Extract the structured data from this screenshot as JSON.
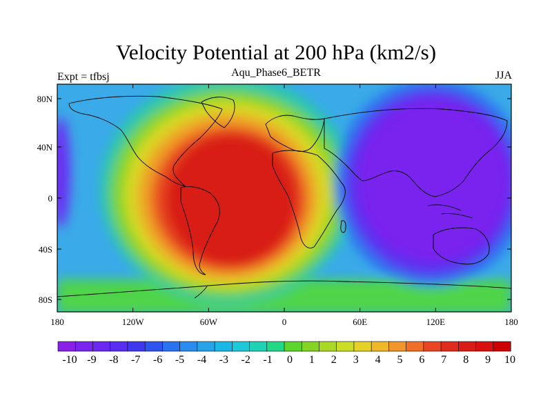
{
  "title": "Velocity Potential at 200 hPa (km2/s)",
  "left_label": "Expt = tfbsj",
  "center_label": "Aqu_Phase6_BETR",
  "right_label": "JJA",
  "x_ticks": [
    "180",
    "120W",
    "60W",
    "0",
    "60E",
    "120E",
    "180"
  ],
  "y_ticks": [
    "80N",
    "40N",
    "0",
    "40S",
    "80S"
  ],
  "colorbar_labels": [
    "-10",
    "-9",
    "-8",
    "-7",
    "-6",
    "-5",
    "-4",
    "-3",
    "-2",
    "-1",
    "0",
    "1",
    "2",
    "3",
    "4",
    "5",
    "6",
    "7",
    "8",
    "9",
    "10"
  ],
  "colorbar_colors": [
    "#8a1fe8",
    "#7a24f0",
    "#6a28f2",
    "#5a2ef2",
    "#3f38ef",
    "#2f55ee",
    "#2a72f0",
    "#2a8cef",
    "#25a4ea",
    "#1ab8e6",
    "#1fc8d9",
    "#1fd2b6",
    "#22d785",
    "#5dd52a",
    "#84d424",
    "#aad825",
    "#ccdd26",
    "#e6d226",
    "#efb828",
    "#f0962a",
    "#ef6f28",
    "#e84624",
    "#e02c1e",
    "#d81c18",
    "#d81010",
    "#cc0000"
  ],
  "colors": {
    "background": "#ffffff",
    "frame": "#000000"
  }
}
